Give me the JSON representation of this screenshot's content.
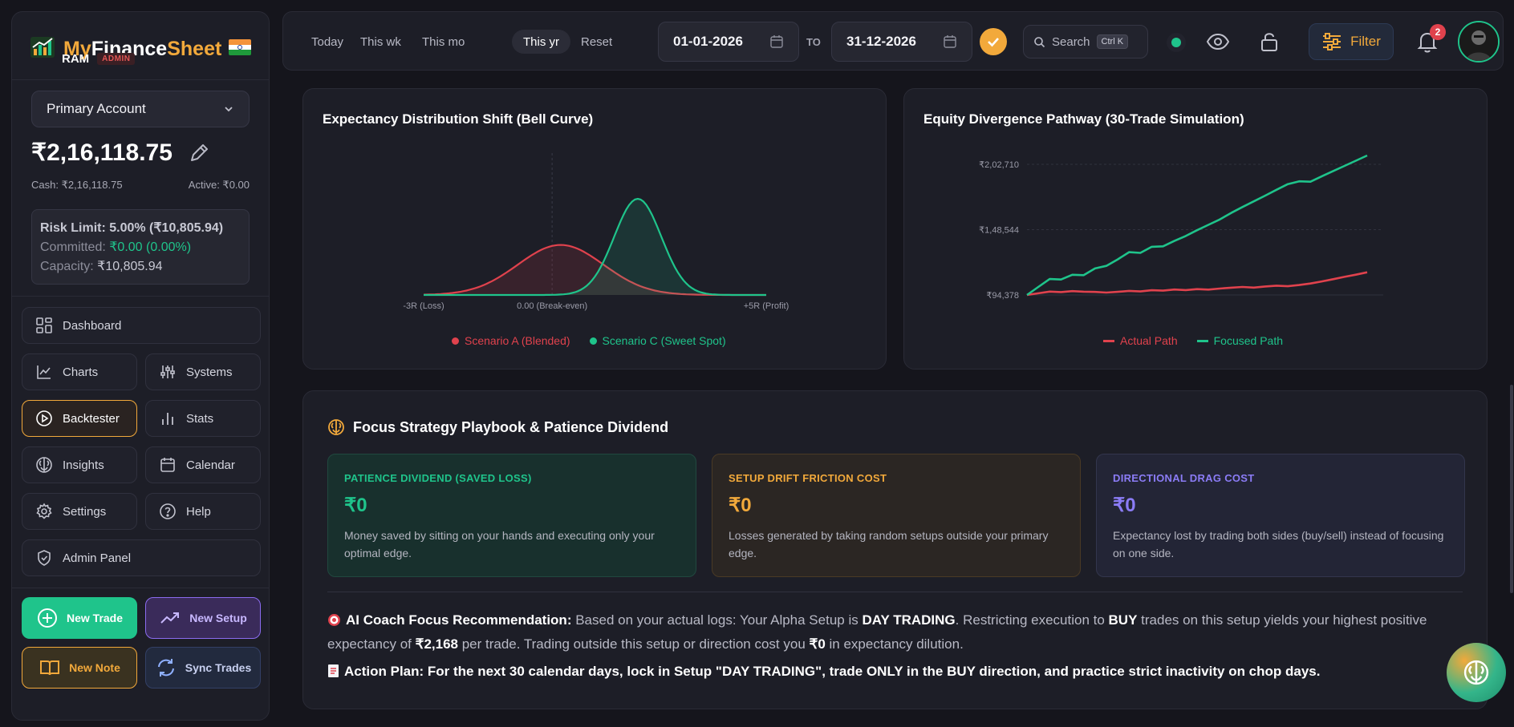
{
  "brand": {
    "name_part1": "My",
    "name_part2": "Finance",
    "name_part3": "Sheet",
    "logo_icon": "chart-logo-icon"
  },
  "user": {
    "name": "RAM",
    "role": "ADMIN"
  },
  "account": {
    "selected": "Primary Account",
    "balance": "₹2,16,118.75",
    "cash": "Cash: ₹2,16,118.75",
    "active": "Active: ₹0.00"
  },
  "risk": {
    "limit": "Risk Limit: 5.00% (₹10,805.94)",
    "committed_label": "Committed:",
    "committed_value": "₹0.00 (0.00%)",
    "capacity_label": "Capacity:",
    "capacity_value": "₹10,805.94"
  },
  "nav": {
    "dashboard": "Dashboard",
    "charts": "Charts",
    "systems": "Systems",
    "backtester": "Backtester",
    "stats": "Stats",
    "insights": "Insights",
    "calendar": "Calendar",
    "settings": "Settings",
    "help": "Help",
    "admin": "Admin Panel"
  },
  "actions": {
    "new_trade": "New Trade",
    "new_setup": "New Setup",
    "new_note": "New Note",
    "sync": "Sync Trades"
  },
  "topbar": {
    "today": "Today",
    "week": "This wk",
    "month": "This mo",
    "year": "This yr",
    "reset": "Reset",
    "from_date": "01-01-2026",
    "to_label": "TO",
    "to_date": "31-12-2026",
    "search_label": "Search",
    "search_shortcut": "Ctrl K",
    "filter": "Filter",
    "notifications": "2"
  },
  "bell_chart": {
    "title": "Expectancy Distribution Shift (Bell Curve)",
    "ticks": [
      "-3R (Loss)",
      "0.00 (Break-even)",
      "+5R (Profit)"
    ],
    "legend_a": "Scenario A (Blended)",
    "legend_c": "Scenario C (Sweet Spot)"
  },
  "equity_chart": {
    "title": "Equity Divergence Pathway (30-Trade Simulation)",
    "yticks": [
      "₹2,02,710",
      "₹1,48,544",
      "₹94,378"
    ],
    "legend_actual": "Actual Path",
    "legend_focused": "Focused Path"
  },
  "chart_data": [
    {
      "type": "area",
      "title": "Expectancy Distribution Shift (Bell Curve)",
      "xlabel": "",
      "ylabel": "",
      "x_ticks": [
        "-3R (Loss)",
        "0.00 (Break-even)",
        "+5R (Profit)"
      ],
      "xlim": [
        -3,
        5
      ],
      "grid": false,
      "legend_position": "bottom",
      "series": [
        {
          "name": "Scenario A (Blended)",
          "distribution": "normal",
          "mean": 0.2,
          "std": 1.0,
          "peak": 0.52,
          "color": "#e0424d"
        },
        {
          "name": "Scenario C (Sweet Spot)",
          "distribution": "normal",
          "mean": 2.0,
          "std": 0.55,
          "peak": 1.0,
          "color": "#1fc48b"
        }
      ]
    },
    {
      "type": "line",
      "title": "Equity Divergence Pathway (30-Trade Simulation)",
      "xlabel": "",
      "ylabel": "",
      "y_ticks": [
        94378,
        148544,
        202710
      ],
      "ylim": [
        94378,
        202710
      ],
      "grid": true,
      "legend_position": "bottom",
      "x": [
        0,
        1,
        2,
        3,
        4,
        5,
        6,
        7,
        8,
        9,
        10,
        11,
        12,
        13,
        14,
        15,
        16,
        17,
        18,
        19,
        20,
        21,
        22,
        23,
        24,
        25,
        26,
        27,
        28,
        29,
        30
      ],
      "series": [
        {
          "name": "Actual Path",
          "color": "#e0424d",
          "values": [
            94378,
            95800,
            97200,
            96800,
            97600,
            97100,
            96900,
            96400,
            97000,
            97800,
            97300,
            98300,
            98000,
            98900,
            98400,
            99200,
            98800,
            99700,
            100400,
            101000,
            100500,
            101400,
            102100,
            101600,
            102600,
            103900,
            105600,
            107500,
            109400,
            111200,
            113200
          ]
        },
        {
          "name": "Focused Path",
          "color": "#1fc48b",
          "values": [
            94378,
            101000,
            107600,
            107200,
            111100,
            110800,
            116400,
            118500,
            123900,
            129900,
            129300,
            134300,
            134700,
            139200,
            143300,
            148100,
            152500,
            157000,
            162400,
            167300,
            172000,
            176700,
            181600,
            186300,
            188600,
            188300,
            192800,
            197100,
            201400,
            205700,
            210000
          ]
        }
      ]
    }
  ],
  "playbook": {
    "title": "Focus Strategy Playbook & Patience Dividend",
    "patience": {
      "label": "PATIENCE DIVIDEND (SAVED LOSS)",
      "value": "₹0",
      "desc": "Money saved by sitting on your hands and executing only your optimal edge."
    },
    "drift": {
      "label": "SETUP DRIFT FRICTION COST",
      "value": "₹0",
      "desc": "Losses generated by taking random setups outside your primary edge."
    },
    "drag": {
      "label": "DIRECTIONAL DRAG COST",
      "value": "₹0",
      "desc": "Expectancy lost by trading both sides (buy/sell) instead of focusing on one side."
    },
    "coach_heading": "AI Coach Focus Recommendation:",
    "coach_t1": " Based on your actual logs: Your Alpha Setup is ",
    "coach_setup": "DAY TRADING",
    "coach_t2": ". Restricting execution to ",
    "coach_direction": "BUY",
    "coach_t3": " trades on this setup yields your highest positive expectancy of ",
    "coach_expectancy": "₹2,168",
    "coach_t4": " per trade. Trading outside this setup or direction cost you ",
    "coach_cost": "₹0",
    "coach_t5": " in expectancy dilution.",
    "action_plan": "Action Plan: For the next 30 calendar days, lock in Setup \"DAY TRADING\", trade ONLY in the BUY direction, and practice strict inactivity on chop days."
  },
  "colors": {
    "accent": "#f2a93b",
    "green": "#1fc48b",
    "red": "#e0424d",
    "purple": "#8b7cf6"
  }
}
